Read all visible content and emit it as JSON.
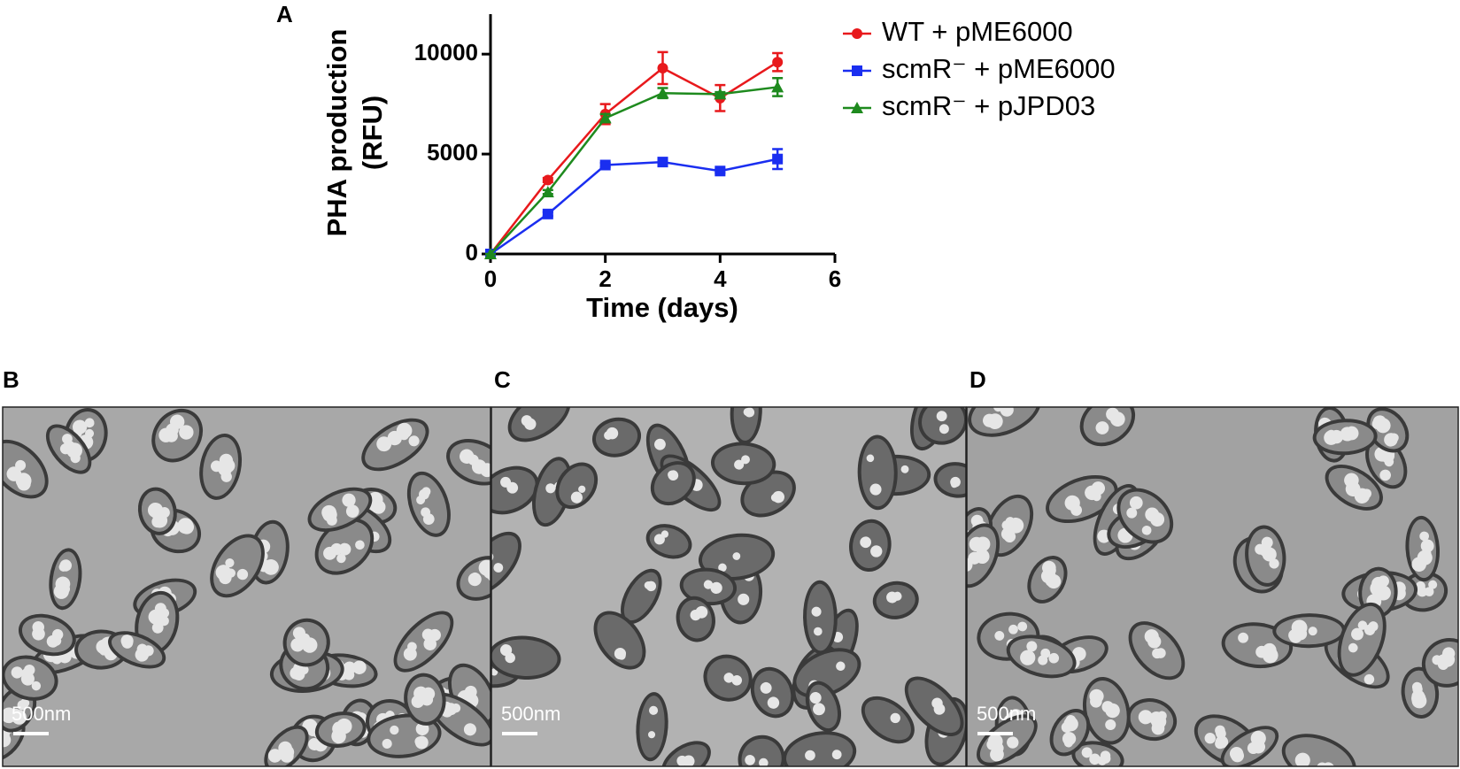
{
  "chart_data": {
    "type": "line",
    "panel_label": "A",
    "ylabel": [
      "PHA production",
      "(RFU)"
    ],
    "xlabel": "Time (days)",
    "x": [
      0,
      1,
      2,
      3,
      4,
      5
    ],
    "series": [
      {
        "name": "WT + pME6000",
        "color": "#e8191c",
        "marker": "circle",
        "values": [
          0,
          3700,
          7000,
          9300,
          7800,
          9600
        ],
        "errors": [
          0,
          100,
          500,
          800,
          650,
          450
        ]
      },
      {
        "name": "scmR⁻ + pME6000",
        "color": "#1a2ef0",
        "marker": "square",
        "values": [
          0,
          2000,
          4450,
          4600,
          4150,
          4750
        ],
        "errors": [
          0,
          100,
          100,
          100,
          100,
          500
        ]
      },
      {
        "name": "scmR⁻ + pJPD03",
        "color": "#1e8a1e",
        "marker": "triangle",
        "values": [
          0,
          3100,
          6800,
          8050,
          8000,
          8350
        ],
        "errors": [
          0,
          100,
          200,
          250,
          100,
          450
        ]
      }
    ],
    "xlim": [
      0,
      6
    ],
    "xticks": [
      0,
      2,
      4,
      6
    ],
    "ylim": [
      0,
      12000
    ],
    "yticks": [
      0,
      5000,
      10000
    ],
    "legend": "right"
  },
  "micrographs": [
    {
      "label": "B",
      "scale_bar": "500nm"
    },
    {
      "label": "C",
      "scale_bar": "500nm"
    },
    {
      "label": "D",
      "scale_bar": "500nm"
    }
  ]
}
